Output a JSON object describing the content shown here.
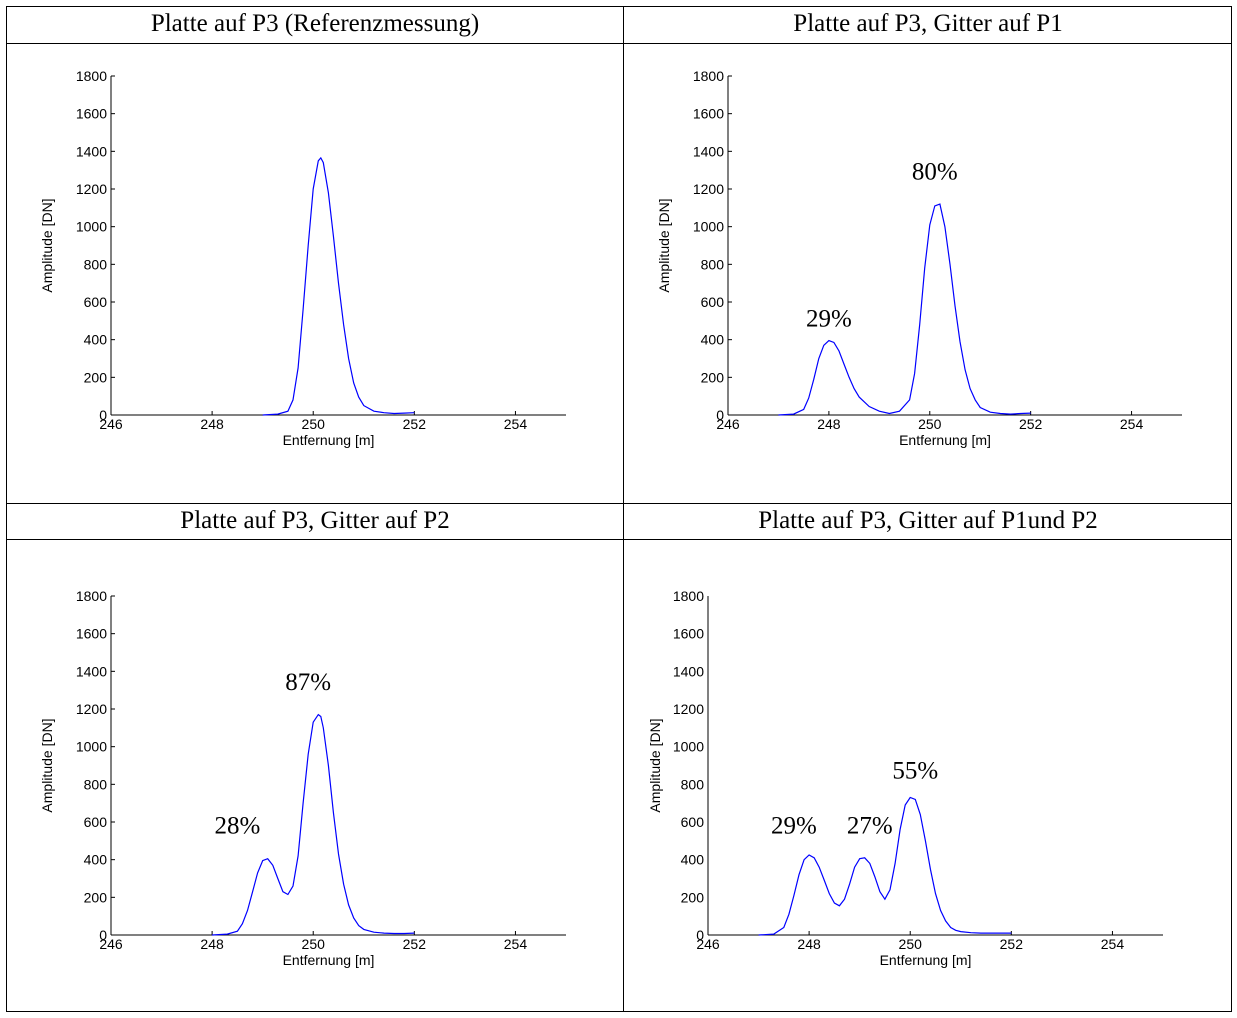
{
  "chart_data": [
    {
      "type": "line",
      "title": "Platte auf P3 (Referenzmessung)",
      "xlabel": "Entfernung [m]",
      "ylabel": "Amplitude [DN]",
      "xlim": [
        246,
        255
      ],
      "ylim": [
        0,
        1800
      ],
      "xticks": [
        "246",
        "248",
        "250",
        "252",
        "254"
      ],
      "yticks": [
        "0",
        "200",
        "400",
        "600",
        "800",
        "1000",
        "1200",
        "1400",
        "1600",
        "1800"
      ],
      "line_color": "#0000ff",
      "grid": false,
      "annotations": [],
      "series": [
        {
          "x": [
            249.0,
            249.3,
            249.5,
            249.6,
            249.7,
            249.8,
            249.9,
            250.0,
            250.1,
            250.15,
            250.2,
            250.3,
            250.4,
            250.5,
            250.6,
            250.7,
            250.8,
            250.9,
            251.0,
            251.2,
            251.4,
            251.6,
            251.8,
            252.0
          ],
          "y": [
            0,
            5,
            20,
            80,
            250,
            560,
            900,
            1200,
            1350,
            1365,
            1340,
            1180,
            950,
            700,
            480,
            300,
            170,
            95,
            50,
            20,
            12,
            8,
            10,
            12
          ]
        }
      ]
    },
    {
      "type": "line",
      "title": "Platte auf P3, Gitter auf P1",
      "xlabel": "Entfernung [m]",
      "ylabel": "Amplitude [DN]",
      "xlim": [
        246,
        255
      ],
      "ylim": [
        0,
        1800
      ],
      "xticks": [
        "246",
        "248",
        "250",
        "252",
        "254"
      ],
      "yticks": [
        "0",
        "200",
        "400",
        "600",
        "800",
        "1000",
        "1200",
        "1400",
        "1600",
        "1800"
      ],
      "line_color": "#0000ff",
      "grid": false,
      "annotations": [
        {
          "text": "29%",
          "x": 248.0,
          "y": 470
        },
        {
          "text": "80%",
          "x": 250.1,
          "y": 1250
        }
      ],
      "series": [
        {
          "x": [
            247.0,
            247.3,
            247.5,
            247.6,
            247.7,
            247.8,
            247.9,
            248.0,
            248.1,
            248.2,
            248.3,
            248.4,
            248.5,
            248.6,
            248.8,
            249.0,
            249.2,
            249.4,
            249.6,
            249.7,
            249.8,
            249.9,
            250.0,
            250.1,
            250.2,
            250.3,
            250.4,
            250.5,
            250.6,
            250.7,
            250.8,
            250.9,
            251.0,
            251.2,
            251.4,
            251.6,
            251.8,
            252.0
          ],
          "y": [
            0,
            5,
            30,
            90,
            190,
            300,
            370,
            395,
            385,
            340,
            270,
            200,
            140,
            95,
            45,
            20,
            8,
            20,
            80,
            220,
            480,
            780,
            1010,
            1110,
            1120,
            1000,
            800,
            580,
            390,
            240,
            140,
            80,
            40,
            15,
            8,
            5,
            8,
            10
          ]
        }
      ]
    },
    {
      "type": "line",
      "title": "Platte auf P3, Gitter auf P2",
      "xlabel": "Entfernung [m]",
      "ylabel": "Amplitude [DN]",
      "xlim": [
        246,
        255
      ],
      "ylim": [
        0,
        1800
      ],
      "xticks": [
        "246",
        "248",
        "250",
        "252",
        "254"
      ],
      "yticks": [
        "0",
        "200",
        "400",
        "600",
        "800",
        "1000",
        "1200",
        "1400",
        "1600",
        "1800"
      ],
      "line_color": "#0000ff",
      "grid": false,
      "annotations": [
        {
          "text": "28%",
          "x": 248.5,
          "y": 540
        },
        {
          "text": "87%",
          "x": 249.9,
          "y": 1300
        }
      ],
      "series": [
        {
          "x": [
            248.0,
            248.3,
            248.5,
            248.6,
            248.7,
            248.8,
            248.9,
            249.0,
            249.1,
            249.2,
            249.3,
            249.4,
            249.5,
            249.6,
            249.7,
            249.8,
            249.9,
            250.0,
            250.1,
            250.15,
            250.2,
            250.3,
            250.4,
            250.5,
            250.6,
            250.7,
            250.8,
            250.9,
            251.0,
            251.2,
            251.4,
            251.6,
            251.8,
            252.0
          ],
          "y": [
            0,
            5,
            20,
            60,
            130,
            230,
            330,
            395,
            405,
            370,
            300,
            230,
            215,
            260,
            420,
            700,
            960,
            1130,
            1170,
            1160,
            1100,
            900,
            650,
            430,
            270,
            160,
            90,
            50,
            30,
            15,
            10,
            8,
            8,
            10
          ]
        }
      ]
    },
    {
      "type": "line",
      "title": "Platte auf P3, Gitter auf P1und P2",
      "xlabel": "Entfernung [m]",
      "ylabel": "Amplitude [DN]",
      "xlim": [
        246,
        255
      ],
      "ylim": [
        0,
        1800
      ],
      "xticks": [
        "246",
        "248",
        "250",
        "252",
        "254"
      ],
      "yticks": [
        "0",
        "200",
        "400",
        "600",
        "800",
        "1000",
        "1200",
        "1400",
        "1600",
        "1800"
      ],
      "line_color": "#0000ff",
      "grid": false,
      "annotations": [
        {
          "text": "29%",
          "x": 247.7,
          "y": 540
        },
        {
          "text": "27%",
          "x": 249.2,
          "y": 540
        },
        {
          "text": "55%",
          "x": 250.1,
          "y": 830
        }
      ],
      "series": [
        {
          "x": [
            247.0,
            247.3,
            247.5,
            247.6,
            247.7,
            247.8,
            247.9,
            248.0,
            248.1,
            248.2,
            248.3,
            248.4,
            248.5,
            248.6,
            248.7,
            248.8,
            248.9,
            249.0,
            249.1,
            249.2,
            249.3,
            249.4,
            249.5,
            249.6,
            249.7,
            249.8,
            249.9,
            250.0,
            250.1,
            250.2,
            250.3,
            250.4,
            250.5,
            250.6,
            250.7,
            250.8,
            250.9,
            251.0,
            251.2,
            251.4,
            251.6,
            251.8,
            252.0
          ],
          "y": [
            0,
            5,
            40,
            110,
            210,
            320,
            400,
            425,
            410,
            360,
            290,
            220,
            170,
            155,
            190,
            270,
            360,
            405,
            410,
            380,
            310,
            230,
            190,
            240,
            380,
            560,
            690,
            730,
            720,
            640,
            500,
            350,
            220,
            130,
            75,
            40,
            25,
            18,
            12,
            10,
            10,
            10,
            10
          ]
        }
      ]
    }
  ]
}
